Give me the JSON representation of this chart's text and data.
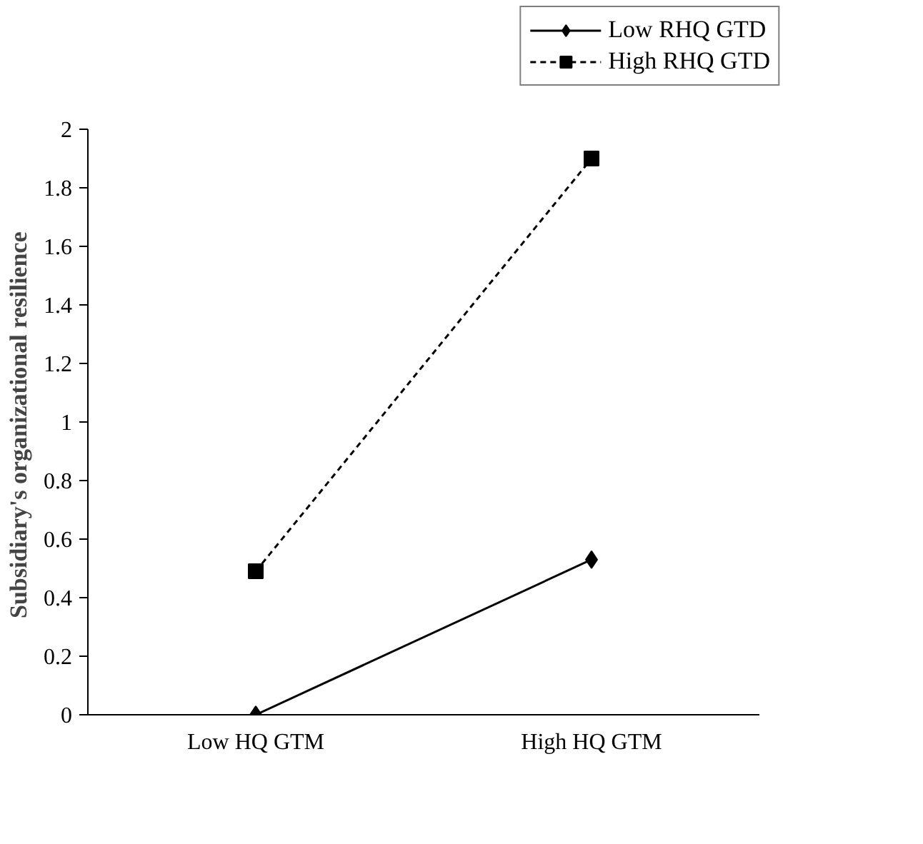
{
  "chart_data": {
    "type": "line",
    "ylabel": "Subsidiary's organizational  resilience",
    "categories": [
      "Low HQ GTM",
      "High HQ GTM"
    ],
    "series": [
      {
        "name": "Low RHQ GTD",
        "color": "#000000",
        "values": [
          0,
          0.53
        ],
        "marker": "diamond",
        "line_style": "solid"
      },
      {
        "name": "High RHQ GTD",
        "color": "#000000",
        "values": [
          0.49,
          1.9
        ],
        "marker": "square",
        "line_style": "dashed"
      }
    ],
    "ylim": [
      0,
      2
    ],
    "yticks": [
      0,
      0.2,
      0.4,
      0.6,
      0.8,
      1,
      1.2,
      1.4,
      1.6,
      1.8,
      2
    ],
    "grid": false,
    "legend": "top right"
  }
}
